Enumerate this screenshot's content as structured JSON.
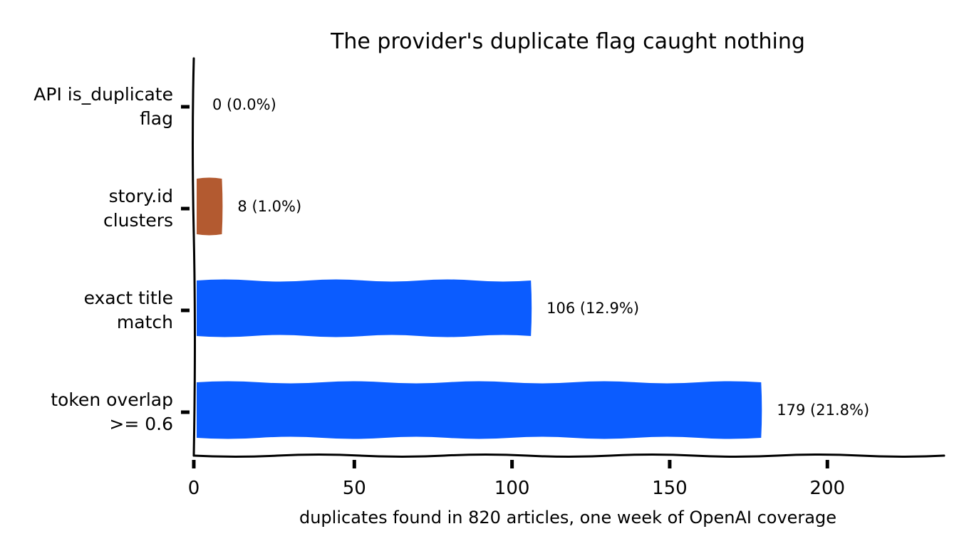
{
  "chart_data": {
    "type": "bar",
    "orientation": "horizontal",
    "title": "The provider's duplicate flag caught nothing",
    "xlabel": "duplicates found in 820 articles, one week of OpenAI coverage",
    "ylabel": "",
    "categories": [
      [
        "API is_duplicate",
        "flag"
      ],
      [
        "story.id",
        "clusters"
      ],
      [
        "exact title",
        "match"
      ],
      [
        "token overlap",
        ">= 0.6"
      ]
    ],
    "values": [
      0,
      8,
      106,
      179
    ],
    "data_labels": [
      "0  (0.0%)",
      "8  (1.0%)",
      "106  (12.9%)",
      "179  (21.8%)"
    ],
    "bar_colors": [
      "#0b5cff",
      "#b35a30",
      "#0b5cff",
      "#0b5cff"
    ],
    "xlim": [
      0,
      237
    ],
    "xticks": [
      0,
      50,
      100,
      150,
      200
    ],
    "xtick_labels": [
      "0",
      "50",
      "100",
      "150",
      "200"
    ],
    "grid": false,
    "legend": "none"
  }
}
